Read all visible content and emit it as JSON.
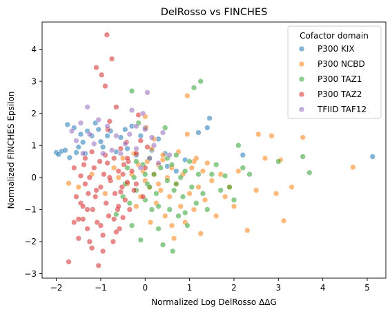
{
  "chart_data": {
    "type": "scatter",
    "title": "DelRosso vs FINCHES",
    "xlabel": "Normalized Log DelRosso ΔΔG",
    "ylabel": "Normalized FINCHES Epsilon",
    "xlim": [
      -2.32,
      5.42
    ],
    "ylim": [
      -3.14,
      4.85
    ],
    "xticks": [
      -2,
      -1,
      0,
      1,
      2,
      3,
      4,
      5
    ],
    "yticks": [
      -3,
      -2,
      -1,
      0,
      1,
      2,
      3,
      4
    ],
    "grid": false,
    "legend": {
      "title": "Cofactor domain",
      "placement": "top-right"
    },
    "series": [
      {
        "name": "P300 KIX",
        "color": "#1f77b4",
        "points": [
          [
            -2.0,
            0.78
          ],
          [
            -1.95,
            0.72
          ],
          [
            -1.88,
            0.82
          ],
          [
            -1.8,
            0.85
          ],
          [
            -1.75,
            1.65
          ],
          [
            -1.7,
            0.62
          ],
          [
            -1.6,
            1.55
          ],
          [
            -1.55,
            0.78
          ],
          [
            -1.5,
            0.95
          ],
          [
            -1.45,
            1.35
          ],
          [
            -1.4,
            1.1
          ],
          [
            -1.35,
            0.75
          ],
          [
            -1.3,
            1.45
          ],
          [
            -1.2,
            1.3
          ],
          [
            -1.12,
            1.7
          ],
          [
            -1.05,
            1.5
          ],
          [
            -1.0,
            1.12
          ],
          [
            -0.95,
            0.95
          ],
          [
            -0.85,
            1.3
          ],
          [
            -0.78,
            1.45
          ],
          [
            -0.65,
            0.8
          ],
          [
            -0.55,
            1.25
          ],
          [
            -0.45,
            1.5
          ],
          [
            -0.4,
            0.9
          ],
          [
            -0.3,
            1.6
          ],
          [
            -0.2,
            0.7
          ],
          [
            -0.1,
            1.3
          ],
          [
            0.0,
            1.55
          ],
          [
            0.15,
            0.85
          ],
          [
            0.3,
            1.2
          ],
          [
            0.45,
            0.75
          ],
          [
            0.5,
            0.35
          ],
          [
            0.7,
            0.2
          ],
          [
            0.9,
            0.55
          ],
          [
            1.2,
            1.4
          ],
          [
            1.4,
            1.55
          ],
          [
            1.45,
            1.85
          ],
          [
            2.2,
            0.7
          ],
          [
            5.12,
            0.65
          ]
        ]
      },
      {
        "name": "P300 NCBD",
        "color": "#ff7f0e",
        "points": [
          [
            -1.72,
            -0.18
          ],
          [
            -1.5,
            -0.3
          ],
          [
            -1.2,
            0.1
          ],
          [
            -0.9,
            -0.5
          ],
          [
            -0.7,
            0.3
          ],
          [
            -0.5,
            0.6
          ],
          [
            -0.4,
            -0.2
          ],
          [
            -0.3,
            0.1
          ],
          [
            -0.25,
            0.75
          ],
          [
            -0.15,
            0.4
          ],
          [
            -0.1,
            -0.6
          ],
          [
            -0.05,
            0.2
          ],
          [
            0.0,
            1.9
          ],
          [
            0.02,
            1.55
          ],
          [
            0.05,
            0.5
          ],
          [
            0.1,
            -0.3
          ],
          [
            0.12,
            -1.4
          ],
          [
            0.15,
            0.9
          ],
          [
            0.2,
            0.1
          ],
          [
            0.25,
            -0.8
          ],
          [
            0.3,
            0.4
          ],
          [
            0.35,
            -0.4
          ],
          [
            0.4,
            0.7
          ],
          [
            0.45,
            -1.2
          ],
          [
            0.5,
            0.0
          ],
          [
            0.55,
            -0.6
          ],
          [
            0.6,
            0.3
          ],
          [
            0.65,
            -1.9
          ],
          [
            0.7,
            -0.2
          ],
          [
            0.75,
            0.8
          ],
          [
            0.8,
            -0.9
          ],
          [
            0.85,
            0.1
          ],
          [
            0.9,
            -1.4
          ],
          [
            0.95,
            1.35
          ],
          [
            1.0,
            -0.5
          ],
          [
            1.05,
            0.3
          ],
          [
            1.1,
            -1.0
          ],
          [
            1.15,
            0.6
          ],
          [
            1.2,
            -0.3
          ],
          [
            1.25,
            -1.75
          ],
          [
            1.3,
            0.2
          ],
          [
            1.35,
            -0.7
          ],
          [
            1.4,
            0.45
          ],
          [
            1.5,
            -0.1
          ],
          [
            1.6,
            -1.2
          ],
          [
            1.7,
            0.1
          ],
          [
            1.8,
            -0.6
          ],
          [
            1.9,
            -0.3
          ],
          [
            2.0,
            -0.9
          ],
          [
            2.1,
            0.2
          ],
          [
            2.3,
            -1.65
          ],
          [
            2.5,
            -0.4
          ],
          [
            2.55,
            1.35
          ],
          [
            2.7,
            0.6
          ],
          [
            2.85,
            1.3
          ],
          [
            2.95,
            -0.5
          ],
          [
            3.05,
            0.55
          ],
          [
            3.12,
            -1.35
          ],
          [
            3.3,
            -0.3
          ],
          [
            3.55,
            1.25
          ],
          [
            4.68,
            0.32
          ],
          [
            0.95,
            2.55
          ],
          [
            0.3,
            -0.2
          ],
          [
            0.6,
            -1.5
          ],
          [
            -0.2,
            -0.9
          ],
          [
            1.1,
            0.5
          ],
          [
            0.0,
            -0.1
          ],
          [
            0.4,
            0.55
          ],
          [
            0.2,
            1.2
          ],
          [
            -0.6,
            0.0
          ]
        ]
      },
      {
        "name": "P300 TAZ1",
        "color": "#2ca02c",
        "points": [
          [
            -0.65,
            -1.15
          ],
          [
            -0.5,
            -0.6
          ],
          [
            -0.45,
            -0.2
          ],
          [
            -0.4,
            0.3
          ],
          [
            -0.35,
            -0.8
          ],
          [
            -0.3,
            -1.5
          ],
          [
            -0.3,
            2.7
          ],
          [
            -0.25,
            0.0
          ],
          [
            -0.2,
            -0.4
          ],
          [
            -0.15,
            1.7
          ],
          [
            -0.1,
            -1.95
          ],
          [
            -0.05,
            0.4
          ],
          [
            0.0,
            -0.7
          ],
          [
            0.05,
            -0.2
          ],
          [
            0.1,
            0.6
          ],
          [
            0.15,
            -1.0
          ],
          [
            0.2,
            0.1
          ],
          [
            0.25,
            -0.5
          ],
          [
            0.3,
            -1.6
          ],
          [
            0.35,
            0.3
          ],
          [
            0.4,
            -2.1
          ],
          [
            0.45,
            1.55
          ],
          [
            0.5,
            -0.1
          ],
          [
            0.55,
            -1.0
          ],
          [
            0.6,
            0.4
          ],
          [
            0.62,
            -2.3
          ],
          [
            0.65,
            -0.4
          ],
          [
            0.7,
            0.7
          ],
          [
            0.75,
            -1.2
          ],
          [
            0.8,
            0.0
          ],
          [
            0.85,
            -0.6
          ],
          [
            0.9,
            0.2
          ],
          [
            0.95,
            -1.5
          ],
          [
            1.0,
            0.5
          ],
          [
            1.05,
            -0.3
          ],
          [
            1.1,
            2.8
          ],
          [
            1.15,
            -0.8
          ],
          [
            1.2,
            0.1
          ],
          [
            1.25,
            3.0
          ],
          [
            1.3,
            -0.5
          ],
          [
            1.4,
            -1.0
          ],
          [
            1.5,
            0.1
          ],
          [
            1.6,
            0.4
          ],
          [
            1.7,
            -0.4
          ],
          [
            1.8,
            0.05
          ],
          [
            1.9,
            -0.3
          ],
          [
            2.0,
            -0.7
          ],
          [
            2.1,
            1.0
          ],
          [
            2.2,
            0.3
          ],
          [
            2.35,
            0.1
          ],
          [
            3.0,
            0.5
          ],
          [
            3.55,
            0.65
          ],
          [
            3.7,
            0.15
          ],
          [
            0.1,
            -0.3
          ],
          [
            0.3,
            -0.9
          ],
          [
            0.5,
            0.6
          ],
          [
            0.7,
            -0.2
          ],
          [
            0.9,
            -1.1
          ],
          [
            -0.2,
            0.5
          ],
          [
            0.0,
            0.1
          ]
        ]
      },
      {
        "name": "P300 TAZ2",
        "color": "#d62728",
        "points": [
          [
            -1.72,
            -2.63
          ],
          [
            -1.6,
            -1.4
          ],
          [
            -1.55,
            -0.6
          ],
          [
            -1.5,
            -1.9
          ],
          [
            -1.45,
            -0.8
          ],
          [
            -1.4,
            -1.3
          ],
          [
            -1.38,
            0.4
          ],
          [
            -1.35,
            -0.2
          ],
          [
            -1.3,
            -1.6
          ],
          [
            -1.28,
            -0.5
          ],
          [
            -1.25,
            0.0
          ],
          [
            -1.2,
            -2.2
          ],
          [
            -1.18,
            -1.0
          ],
          [
            -1.15,
            0.3
          ],
          [
            -1.12,
            -0.6
          ],
          [
            -1.1,
            3.43
          ],
          [
            -1.08,
            -1.4
          ],
          [
            -1.05,
            -2.75
          ],
          [
            -1.02,
            0.5
          ],
          [
            -1.0,
            -0.3
          ],
          [
            -0.98,
            3.2
          ],
          [
            -0.95,
            -1.8
          ],
          [
            -0.93,
            0.1
          ],
          [
            -0.9,
            2.85
          ],
          [
            -0.88,
            -0.8
          ],
          [
            -0.86,
            4.45
          ],
          [
            -0.84,
            1.5
          ],
          [
            -0.82,
            -1.2
          ],
          [
            -0.8,
            1.75
          ],
          [
            -0.78,
            -0.1
          ],
          [
            -0.75,
            3.7
          ],
          [
            -0.72,
            -2.0
          ],
          [
            -0.7,
            0.6
          ],
          [
            -0.68,
            -0.5
          ],
          [
            -0.65,
            2.2
          ],
          [
            -0.62,
            -1.0
          ],
          [
            -0.6,
            0.2
          ],
          [
            -0.58,
            -1.6
          ],
          [
            -0.55,
            0.9
          ],
          [
            -0.52,
            -0.3
          ],
          [
            -0.5,
            -1.25
          ],
          [
            -0.48,
            0.4
          ],
          [
            -0.45,
            -0.7
          ],
          [
            -0.42,
            1.1
          ],
          [
            -0.4,
            -0.15
          ],
          [
            -0.38,
            0.5
          ],
          [
            -0.35,
            -1.0
          ],
          [
            -0.3,
            0.2
          ],
          [
            -0.25,
            -0.4
          ],
          [
            -0.2,
            0.75
          ],
          [
            -0.15,
            1.95
          ],
          [
            -0.1,
            1.15
          ],
          [
            -0.05,
            -0.6
          ],
          [
            0.0,
            0.3
          ],
          [
            0.05,
            0.95
          ],
          [
            -1.6,
            0.3
          ],
          [
            -1.4,
            -0.9
          ],
          [
            -1.2,
            0.8
          ],
          [
            -1.0,
            -1.5
          ],
          [
            -0.8,
            0.0
          ],
          [
            -0.6,
            -0.9
          ],
          [
            -0.4,
            0.6
          ],
          [
            -0.2,
            -0.2
          ],
          [
            -1.3,
            -1.0
          ],
          [
            -1.1,
            -0.4
          ],
          [
            -0.9,
            0.7
          ],
          [
            -0.7,
            -1.3
          ],
          [
            -0.5,
            0.1
          ],
          [
            -1.5,
            -1.3
          ],
          [
            -1.25,
            -2.0
          ],
          [
            -0.95,
            -2.3
          ],
          [
            -0.65,
            -1.7
          ],
          [
            -1.35,
            0.6
          ],
          [
            -0.85,
            0.45
          ],
          [
            -0.55,
            -0.45
          ],
          [
            -1.45,
            0.05
          ]
        ]
      },
      {
        "name": "TFIID TAF12",
        "color": "#9467bd",
        "points": [
          [
            -1.65,
            1.45
          ],
          [
            -1.55,
            1.15
          ],
          [
            -1.45,
            1.7
          ],
          [
            -1.4,
            0.75
          ],
          [
            -1.3,
            2.2
          ],
          [
            -1.25,
            1.35
          ],
          [
            -1.15,
            1.05
          ],
          [
            -1.05,
            1.8
          ],
          [
            -0.95,
            0.75
          ],
          [
            -0.85,
            1.6
          ],
          [
            -0.75,
            0.85
          ],
          [
            -0.65,
            1.3
          ],
          [
            -0.55,
            0.75
          ],
          [
            -0.45,
            1.05
          ],
          [
            -0.35,
            1.35
          ],
          [
            -0.3,
            2.1
          ],
          [
            -0.2,
            0.9
          ],
          [
            -0.1,
            0.3
          ],
          [
            0.0,
            1.5
          ],
          [
            0.05,
            2.65
          ],
          [
            0.1,
            0.6
          ],
          [
            0.2,
            1.0
          ],
          [
            0.3,
            0.45
          ],
          [
            -0.05,
            2.0
          ],
          [
            -0.2,
            1.6
          ],
          [
            0.15,
            1.25
          ],
          [
            0.4,
            1.4
          ],
          [
            0.55,
            0.7
          ]
        ]
      }
    ]
  }
}
